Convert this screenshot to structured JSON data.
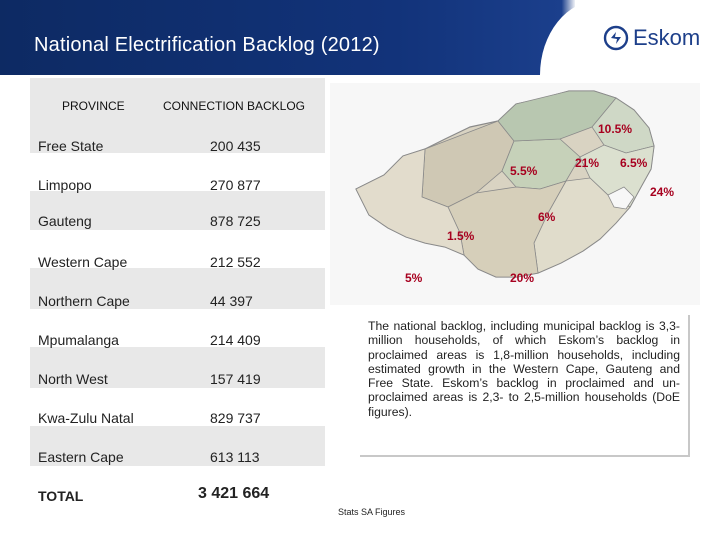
{
  "header": {
    "title": "National Electrification Backlog (2012)",
    "logo_text": "Eskom"
  },
  "table": {
    "col_province": "PROVINCE",
    "col_backlog": "CONNECTION BACKLOG",
    "rows": [
      {
        "province": "Free State",
        "backlog": "200 435"
      },
      {
        "province": "Limpopo",
        "backlog": "270 877"
      },
      {
        "province": "Gauteng",
        "backlog": "878 725"
      },
      {
        "province": "Western Cape",
        "backlog": "212 552"
      },
      {
        "province": "Northern Cape",
        "backlog": "44 397"
      },
      {
        "province": "Mpumalanga",
        "backlog": "214 409"
      },
      {
        "province": "North West",
        "backlog": "157 419"
      },
      {
        "province": "Kwa-Zulu Natal",
        "backlog": "829 737"
      },
      {
        "province": "Eastern Cape",
        "backlog": "613 113"
      }
    ],
    "total_label": "TOTAL",
    "total_value": "3 421 664"
  },
  "map": {
    "labels": [
      "10.5%",
      "5.5%",
      "21%",
      "6.5%",
      "24%",
      "6%",
      "1.5%",
      "5%",
      "20%"
    ]
  },
  "note": "The national backlog, including municipal backlog is 3,3-million households, of which Eskom’s backlog in proclaimed areas is 1,8-million households, including estimated growth in the Western Cape, Gauteng and Free State. Eskom’s backlog in proclaimed and un-proclaimed areas is 2,3- to 2,5-million households (DoE figures).",
  "source": "Stats SA Figures"
}
